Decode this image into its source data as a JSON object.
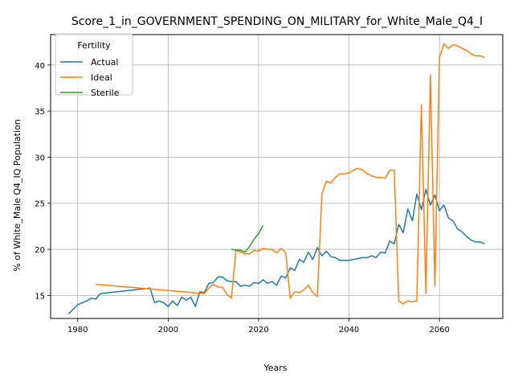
{
  "chart_data": {
    "type": "line",
    "title": "Score_1_in_GOVERNMENT_SPENDING_ON_MILITARY_for_White_Male_Q4_I",
    "xlabel": "Years",
    "ylabel": "% of White_Male Q4_IQ Population",
    "xlim": [
      1974,
      2074
    ],
    "ylim": [
      12.5,
      43.3
    ],
    "xticks": [
      1980,
      2000,
      2020,
      2040,
      2060
    ],
    "yticks": [
      15,
      20,
      25,
      30,
      35,
      40
    ],
    "grid": true,
    "legend": {
      "title": "Fertility",
      "placement": "top-left"
    },
    "series": [
      {
        "name": "Actual",
        "color": "#1f77b4",
        "points": [
          [
            1978,
            13.0
          ],
          [
            1980,
            14.0
          ],
          [
            1982,
            14.4
          ],
          [
            1983,
            14.7
          ],
          [
            1984,
            14.6
          ],
          [
            1985,
            15.2
          ],
          [
            1996,
            15.8
          ],
          [
            1997,
            14.2
          ],
          [
            1998,
            14.4
          ],
          [
            1999,
            14.2
          ],
          [
            2000,
            13.8
          ],
          [
            2001,
            14.4
          ],
          [
            2002,
            13.9
          ],
          [
            2003,
            14.8
          ],
          [
            2004,
            14.5
          ],
          [
            2005,
            14.8
          ],
          [
            2006,
            13.8
          ],
          [
            2007,
            15.4
          ],
          [
            2008,
            15.3
          ],
          [
            2009,
            16.3
          ],
          [
            2010,
            16.4
          ],
          [
            2011,
            17.0
          ],
          [
            2012,
            17.0
          ],
          [
            2013,
            16.6
          ],
          [
            2014,
            16.5
          ],
          [
            2015,
            16.5
          ],
          [
            2016,
            16.0
          ],
          [
            2017,
            16.1
          ],
          [
            2018,
            16.0
          ],
          [
            2019,
            16.4
          ],
          [
            2020,
            16.3
          ],
          [
            2021,
            16.7
          ],
          [
            2022,
            16.3
          ],
          [
            2023,
            16.5
          ],
          [
            2024,
            16.1
          ],
          [
            2025,
            17.1
          ],
          [
            2026,
            16.9
          ],
          [
            2027,
            18.0
          ],
          [
            2028,
            17.7
          ],
          [
            2029,
            18.9
          ],
          [
            2030,
            18.6
          ],
          [
            2031,
            19.7
          ],
          [
            2032,
            18.9
          ],
          [
            2033,
            20.2
          ],
          [
            2034,
            19.3
          ],
          [
            2035,
            19.8
          ],
          [
            2036,
            19.2
          ],
          [
            2037,
            19.1
          ],
          [
            2038,
            18.8
          ],
          [
            2039,
            18.8
          ],
          [
            2040,
            18.8
          ],
          [
            2041,
            18.9
          ],
          [
            2042,
            19.0
          ],
          [
            2043,
            19.1
          ],
          [
            2044,
            19.1
          ],
          [
            2045,
            19.3
          ],
          [
            2046,
            19.1
          ],
          [
            2047,
            19.7
          ],
          [
            2048,
            19.6
          ],
          [
            2049,
            20.9
          ],
          [
            2050,
            20.6
          ],
          [
            2051,
            22.7
          ],
          [
            2052,
            21.8
          ],
          [
            2053,
            24.4
          ],
          [
            2054,
            23.1
          ],
          [
            2055,
            26.0
          ],
          [
            2056,
            24.3
          ],
          [
            2057,
            26.5
          ],
          [
            2058,
            24.8
          ],
          [
            2059,
            25.9
          ],
          [
            2060,
            24.2
          ],
          [
            2061,
            24.8
          ],
          [
            2062,
            23.4
          ],
          [
            2063,
            23.1
          ],
          [
            2064,
            22.2
          ],
          [
            2065,
            21.9
          ],
          [
            2066,
            21.4
          ],
          [
            2067,
            21.0
          ],
          [
            2068,
            20.8
          ],
          [
            2069,
            20.8
          ],
          [
            2070,
            20.6
          ]
        ]
      },
      {
        "name": "Ideal",
        "color": "#ff7f0e",
        "points": [
          [
            1984,
            16.2
          ],
          [
            1996,
            15.7
          ],
          [
            2008,
            15.2
          ],
          [
            2009,
            15.8
          ],
          [
            2010,
            16.2
          ],
          [
            2011,
            15.9
          ],
          [
            2012,
            15.9
          ],
          [
            2013,
            15.1
          ],
          [
            2014,
            14.7
          ],
          [
            2015,
            19.9
          ],
          [
            2016,
            19.7
          ],
          [
            2017,
            19.5
          ],
          [
            2018,
            19.5
          ],
          [
            2019,
            19.9
          ],
          [
            2020,
            19.8
          ],
          [
            2021,
            20.1
          ],
          [
            2022,
            20.0
          ],
          [
            2023,
            20.0
          ],
          [
            2024,
            19.6
          ],
          [
            2025,
            20.1
          ],
          [
            2026,
            19.6
          ],
          [
            2027,
            14.7
          ],
          [
            2028,
            15.4
          ],
          [
            2029,
            15.3
          ],
          [
            2030,
            15.6
          ],
          [
            2031,
            16.1
          ],
          [
            2032,
            15.3
          ],
          [
            2033,
            14.9
          ],
          [
            2034,
            26.0
          ],
          [
            2035,
            27.4
          ],
          [
            2036,
            27.2
          ],
          [
            2037,
            27.8
          ],
          [
            2038,
            28.2
          ],
          [
            2039,
            28.2
          ],
          [
            2040,
            28.3
          ],
          [
            2041,
            28.6
          ],
          [
            2042,
            28.8
          ],
          [
            2043,
            28.6
          ],
          [
            2044,
            28.2
          ],
          [
            2045,
            28.0
          ],
          [
            2046,
            27.8
          ],
          [
            2047,
            27.8
          ],
          [
            2048,
            27.7
          ],
          [
            2049,
            28.6
          ],
          [
            2050,
            28.6
          ],
          [
            2051,
            14.4
          ],
          [
            2052,
            14.1
          ],
          [
            2053,
            14.4
          ],
          [
            2054,
            14.3
          ],
          [
            2055,
            14.4
          ],
          [
            2056,
            35.7
          ],
          [
            2057,
            15.2
          ],
          [
            2058,
            38.9
          ],
          [
            2059,
            16.0
          ],
          [
            2060,
            40.8
          ],
          [
            2061,
            42.3
          ],
          [
            2062,
            41.8
          ],
          [
            2063,
            42.2
          ],
          [
            2064,
            42.1
          ],
          [
            2065,
            41.8
          ],
          [
            2066,
            41.6
          ],
          [
            2067,
            41.2
          ],
          [
            2068,
            41.0
          ],
          [
            2069,
            41.0
          ],
          [
            2070,
            40.8
          ]
        ]
      },
      {
        "name": "Sterile",
        "color": "#2ca02c",
        "points": [
          [
            2014,
            20.0
          ],
          [
            2015,
            19.9
          ],
          [
            2016,
            19.9
          ],
          [
            2017,
            19.7
          ],
          [
            2018,
            20.3
          ],
          [
            2019,
            21.1
          ],
          [
            2020,
            21.7
          ],
          [
            2021,
            22.6
          ]
        ]
      }
    ]
  }
}
